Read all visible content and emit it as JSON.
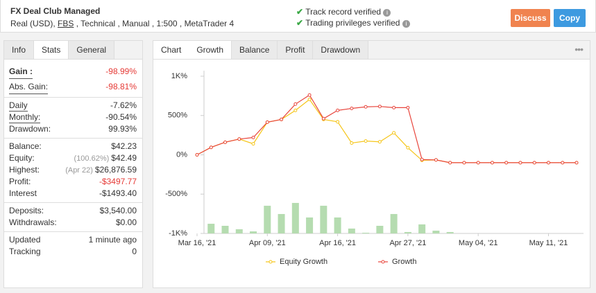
{
  "header": {
    "title": "FX Deal Club Managed",
    "account": [
      "Real (USD), ",
      "FBS",
      " , Technical , Manual , 1:500 , MetaTrader 4"
    ],
    "verifications": [
      "Track record verified",
      "Trading privileges verified"
    ],
    "buttons": [
      "Discuss",
      "Copy"
    ]
  },
  "stats": {
    "tabs": [
      "Info",
      "Stats",
      "General"
    ],
    "groups": [
      [
        {
          "label": "Gain :",
          "value": "-98.99%",
          "color": "#e53935",
          "underline": true,
          "bold": true
        },
        {
          "label": "Abs. Gain:",
          "value": "-98.81%",
          "color": "#e53935",
          "underline": true
        }
      ],
      [
        {
          "label": "Daily",
          "value": "-7.62%",
          "underline": true
        },
        {
          "label": "Monthly:",
          "value": "-90.54%",
          "underline": true
        },
        {
          "label": "Drawdown:",
          "value": "99.93%"
        }
      ],
      [
        {
          "label": "Balance:",
          "value": "$42.23"
        },
        {
          "label": "Equity:",
          "note": "(100.62%)",
          "value": "$42.49"
        },
        {
          "label": "Highest:",
          "note": "(Apr 22)",
          "value": "$26,876.59"
        },
        {
          "label": "Profit:",
          "value": "-$3497.77",
          "color": "#e53935"
        },
        {
          "label": "Interest",
          "value": "-$1493.40"
        }
      ],
      [
        {
          "label": "Deposits:",
          "value": "$3,540.00"
        },
        {
          "label": "Withdrawals:",
          "value": "$0.00"
        }
      ],
      [
        {
          "label": "Updated",
          "value": "1 minute ago"
        },
        {
          "label": "Tracking",
          "value": "0"
        }
      ]
    ]
  },
  "chart_tabs": [
    "Chart",
    "Growth",
    "Balance",
    "Profit",
    "Drawdown"
  ],
  "chart_data": {
    "type": "line",
    "categories": [
      "Mar 16, '21",
      null,
      null,
      null,
      null,
      "Apr 09, '21",
      null,
      null,
      null,
      null,
      "Apr 16, '21",
      null,
      null,
      null,
      null,
      "Apr 27, '21",
      null,
      null,
      null,
      null,
      "May 04, '21",
      null,
      null,
      null,
      null,
      "May 11, '21",
      null,
      null
    ],
    "series": [
      {
        "type": "bar",
        "color": "#b5dcb0",
        "values": [
          0,
          123,
          97,
          53,
          26,
          352,
          247,
          388,
          203,
          352,
          203,
          62,
          9,
          97,
          247,
          18,
          115,
          35,
          18,
          0,
          0,
          0,
          0,
          0,
          0,
          0,
          0,
          0
        ]
      },
      {
        "name": "Equity Growth",
        "color": "#f5c518",
        "values": [
          0,
          95,
          160,
          200,
          140,
          415,
          450,
          565,
          705,
          450,
          420,
          150,
          175,
          165,
          280,
          90,
          -70,
          -65,
          -100,
          -100,
          -100,
          -100,
          -100,
          -100,
          -100,
          -100,
          -100,
          -100
        ]
      },
      {
        "name": "Growth",
        "color": "#e8453c",
        "values": [
          0,
          95,
          160,
          200,
          220,
          415,
          450,
          645,
          760,
          460,
          565,
          590,
          610,
          615,
          600,
          600,
          -60,
          -65,
          -100,
          -100,
          -100,
          -100,
          -100,
          -100,
          -100,
          -100,
          -100,
          -100
        ]
      }
    ],
    "ylim": [
      -1000,
      1000
    ],
    "yticks": [
      {
        "value": 1000,
        "label": "1K%"
      },
      {
        "value": 500,
        "label": "500%"
      },
      {
        "value": 0,
        "label": "0%"
      },
      {
        "value": -500,
        "label": "-500%"
      },
      {
        "value": -1000,
        "label": "-1K%"
      }
    ],
    "grid": false
  }
}
